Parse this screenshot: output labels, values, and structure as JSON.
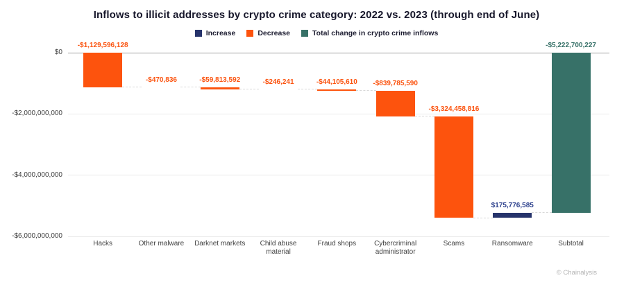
{
  "attribution": "© Chainalysis",
  "colors": {
    "title_text": "#17172b",
    "legend_text": "#1c1c30",
    "axis_text": "#3f3f3f",
    "grid": "#e9e9e9",
    "zero_line": "#9e9e9e",
    "connector": "#d8d8d8",
    "attribution_text": "#b3b3b3",
    "bar": {
      "increase": "#26336b",
      "decrease": "#fd530d",
      "total": "#377168"
    },
    "label": {
      "increase": "#2b3f8c",
      "decrease": "#fb530f",
      "total": "#377168"
    }
  },
  "chart_data": {
    "type": "bar",
    "subtype": "waterfall",
    "title": "Inflows to illicit addresses by crypto crime category: 2022 vs. 2023 (through end of June)",
    "xlabel": "",
    "ylabel": "",
    "ylim": [
      -6000000000,
      0
    ],
    "grid": true,
    "legend_position": "top",
    "legend": [
      {
        "key": "increase",
        "label": "Increase"
      },
      {
        "key": "decrease",
        "label": "Decrease"
      },
      {
        "key": "total",
        "label": "Total change in crypto crime inflows"
      }
    ],
    "yticks": [
      {
        "value": 0,
        "label": "$0"
      },
      {
        "value": -2000000000,
        "label": "-$2,000,000,000"
      },
      {
        "value": -4000000000,
        "label": "-$4,000,000,000"
      },
      {
        "value": -6000000000,
        "label": "-$6,000,000,000"
      }
    ],
    "categories": [
      "Hacks",
      "Other malware",
      "Darknet markets",
      "Child abuse\nmaterial",
      "Fraud shops",
      "Cybercriminal\nadministrator",
      "Scams",
      "Ransomware",
      "Subtotal"
    ],
    "points": [
      {
        "category": "Hacks",
        "value": -1129596128,
        "label": "-$1,129,596,128",
        "kind": "decrease"
      },
      {
        "category": "Other malware",
        "value": -470836,
        "label": "-$470,836",
        "kind": "decrease"
      },
      {
        "category": "Darknet markets",
        "value": -59813592,
        "label": "-$59,813,592",
        "kind": "decrease"
      },
      {
        "category": "Child abuse\nmaterial",
        "value": -246241,
        "label": "-$246,241",
        "kind": "decrease"
      },
      {
        "category": "Fraud shops",
        "value": -44105610,
        "label": "-$44,105,610",
        "kind": "decrease"
      },
      {
        "category": "Cybercriminal\nadministrator",
        "value": -839785590,
        "label": "-$839,785,590",
        "kind": "decrease"
      },
      {
        "category": "Scams",
        "value": -3324458816,
        "label": "-$3,324,458,816",
        "kind": "decrease"
      },
      {
        "category": "Ransomware",
        "value": 175776585,
        "label": "$175,776,585",
        "kind": "increase"
      },
      {
        "category": "Subtotal",
        "value": -5222700227,
        "label": "-$5,222,700,227",
        "kind": "total"
      }
    ]
  }
}
